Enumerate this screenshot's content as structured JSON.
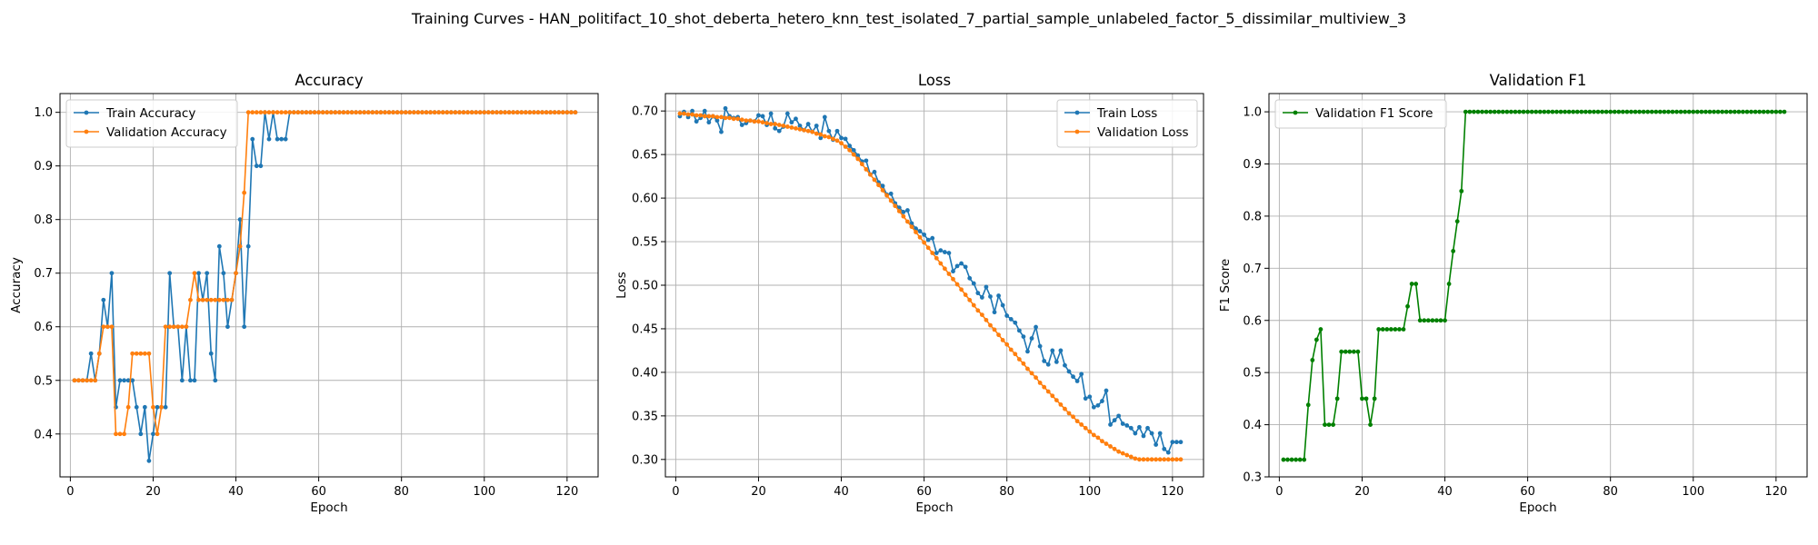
{
  "figure": {
    "suptitle": "Training Curves - HAN_politifact_10_shot_deberta_hetero_knn_test_isolated_7_partial_sample_unlabeled_factor_5_dissimilar_multiview_3"
  },
  "colors": {
    "blue": "#1f77b4",
    "orange": "#ff7f0e",
    "green": "#008000",
    "grid": "#b0b0b0"
  },
  "chart_data": [
    {
      "type": "line",
      "title": "Accuracy",
      "xlabel": "Epoch",
      "ylabel": "Accuracy",
      "xlim": [
        -2.5,
        127.5
      ],
      "ylim": [
        0.32,
        1.035
      ],
      "xticks": [
        0,
        20,
        40,
        60,
        80,
        100,
        120
      ],
      "xtick_labels": [
        "0",
        "20",
        "40",
        "60",
        "80",
        "100",
        "120"
      ],
      "yticks": [
        0.4,
        0.5,
        0.6,
        0.7,
        0.8,
        0.9,
        1.0
      ],
      "ytick_labels": [
        "0.4",
        "0.5",
        "0.6",
        "0.7",
        "0.8",
        "0.9",
        "1.0"
      ],
      "grid": true,
      "legend": "upper-left",
      "x_start": 1,
      "series": [
        {
          "name": "Train Accuracy",
          "color": "#1f77b4",
          "values": [
            0.5,
            0.5,
            0.5,
            0.5,
            0.55,
            0.5,
            0.55,
            0.65,
            0.6,
            0.7,
            0.45,
            0.5,
            0.5,
            0.5,
            0.5,
            0.45,
            0.4,
            0.45,
            0.35,
            0.4,
            0.45,
            0.45,
            0.45,
            0.7,
            0.6,
            0.6,
            0.5,
            0.6,
            0.5,
            0.5,
            0.7,
            0.65,
            0.7,
            0.55,
            0.5,
            0.75,
            0.7,
            0.6,
            0.65,
            0.7,
            0.8,
            0.6,
            0.75,
            0.95,
            0.9,
            0.9,
            1.0,
            0.95,
            1.0,
            0.95,
            0.95,
            0.95,
            1.0,
            1.0,
            1.0,
            1.0,
            1.0,
            1.0,
            1.0,
            1.0,
            1.0,
            1.0,
            1.0,
            1.0,
            1.0,
            1.0,
            1.0,
            1.0,
            1.0,
            1.0,
            1.0,
            1.0,
            1.0,
            1.0,
            1.0,
            1.0,
            1.0,
            1.0,
            1.0,
            1.0,
            1.0,
            1.0,
            1.0,
            1.0,
            1.0,
            1.0,
            1.0,
            1.0,
            1.0,
            1.0,
            1.0,
            1.0,
            1.0,
            1.0,
            1.0,
            1.0,
            1.0,
            1.0,
            1.0,
            1.0,
            1.0,
            1.0,
            1.0,
            1.0,
            1.0,
            1.0,
            1.0,
            1.0,
            1.0,
            1.0,
            1.0,
            1.0,
            1.0,
            1.0,
            1.0,
            1.0,
            1.0,
            1.0,
            1.0,
            1.0,
            1.0,
            1.0
          ]
        },
        {
          "name": "Validation Accuracy",
          "color": "#ff7f0e",
          "values": [
            0.5,
            0.5,
            0.5,
            0.5,
            0.5,
            0.5,
            0.55,
            0.6,
            0.6,
            0.6,
            0.4,
            0.4,
            0.4,
            0.45,
            0.55,
            0.55,
            0.55,
            0.55,
            0.55,
            0.45,
            0.4,
            0.45,
            0.6,
            0.6,
            0.6,
            0.6,
            0.6,
            0.6,
            0.65,
            0.7,
            0.65,
            0.65,
            0.65,
            0.65,
            0.65,
            0.65,
            0.65,
            0.65,
            0.65,
            0.7,
            0.75,
            0.85,
            1.0,
            1.0,
            1.0,
            1.0,
            1.0,
            1.0,
            1.0,
            1.0,
            1.0,
            1.0,
            1.0,
            1.0,
            1.0,
            1.0,
            1.0,
            1.0,
            1.0,
            1.0,
            1.0,
            1.0,
            1.0,
            1.0,
            1.0,
            1.0,
            1.0,
            1.0,
            1.0,
            1.0,
            1.0,
            1.0,
            1.0,
            1.0,
            1.0,
            1.0,
            1.0,
            1.0,
            1.0,
            1.0,
            1.0,
            1.0,
            1.0,
            1.0,
            1.0,
            1.0,
            1.0,
            1.0,
            1.0,
            1.0,
            1.0,
            1.0,
            1.0,
            1.0,
            1.0,
            1.0,
            1.0,
            1.0,
            1.0,
            1.0,
            1.0,
            1.0,
            1.0,
            1.0,
            1.0,
            1.0,
            1.0,
            1.0,
            1.0,
            1.0,
            1.0,
            1.0,
            1.0,
            1.0,
            1.0,
            1.0,
            1.0,
            1.0,
            1.0,
            1.0,
            1.0,
            1.0
          ]
        }
      ]
    },
    {
      "type": "line",
      "title": "Loss",
      "xlabel": "Epoch",
      "ylabel": "Loss",
      "xlim": [
        -2.5,
        127.5
      ],
      "ylim": [
        0.28,
        0.72
      ],
      "xticks": [
        0,
        20,
        40,
        60,
        80,
        100,
        120
      ],
      "xtick_labels": [
        "0",
        "20",
        "40",
        "60",
        "80",
        "100",
        "120"
      ],
      "yticks": [
        0.3,
        0.35,
        0.4,
        0.45,
        0.5,
        0.55,
        0.6,
        0.65,
        0.7
      ],
      "ytick_labels": [
        "0.30",
        "0.35",
        "0.40",
        "0.45",
        "0.50",
        "0.55",
        "0.60",
        "0.65",
        "0.70"
      ],
      "grid": true,
      "legend": "upper-right",
      "x_start": 1,
      "series": [
        {
          "name": "Train Loss",
          "color": "#1f77b4",
          "values": [
            0.694,
            0.699,
            0.693,
            0.7,
            0.688,
            0.692,
            0.7,
            0.687,
            0.694,
            0.689,
            0.676,
            0.703,
            0.694,
            0.692,
            0.693,
            0.684,
            0.686,
            0.689,
            0.688,
            0.695,
            0.694,
            0.684,
            0.697,
            0.68,
            0.677,
            0.682,
            0.697,
            0.687,
            0.691,
            0.683,
            0.678,
            0.685,
            0.676,
            0.683,
            0.669,
            0.693,
            0.677,
            0.667,
            0.677,
            0.669,
            0.668,
            0.66,
            0.655,
            0.649,
            0.642,
            0.643,
            0.627,
            0.63,
            0.618,
            0.614,
            0.604,
            0.605,
            0.594,
            0.589,
            0.584,
            0.586,
            0.571,
            0.565,
            0.562,
            0.558,
            0.552,
            0.554,
            0.537,
            0.54,
            0.538,
            0.537,
            0.516,
            0.522,
            0.525,
            0.521,
            0.508,
            0.502,
            0.491,
            0.486,
            0.498,
            0.487,
            0.469,
            0.488,
            0.477,
            0.465,
            0.461,
            0.457,
            0.448,
            0.441,
            0.424,
            0.439,
            0.452,
            0.43,
            0.413,
            0.409,
            0.425,
            0.412,
            0.425,
            0.408,
            0.401,
            0.395,
            0.39,
            0.398,
            0.37,
            0.372,
            0.36,
            0.362,
            0.367,
            0.379,
            0.34,
            0.345,
            0.35,
            0.341,
            0.339,
            0.336,
            0.33,
            0.337,
            0.327,
            0.336,
            0.33,
            0.317,
            0.33,
            0.312,
            0.308,
            0.32,
            0.32,
            0.32
          ]
        },
        {
          "name": "Validation Loss",
          "color": "#ff7f0e",
          "values": [
            0.697,
            0.697,
            0.696,
            0.696,
            0.695,
            0.695,
            0.694,
            0.694,
            0.694,
            0.693,
            0.693,
            0.692,
            0.692,
            0.691,
            0.691,
            0.69,
            0.689,
            0.689,
            0.688,
            0.688,
            0.687,
            0.686,
            0.685,
            0.685,
            0.684,
            0.683,
            0.682,
            0.681,
            0.68,
            0.679,
            0.678,
            0.677,
            0.676,
            0.674,
            0.673,
            0.671,
            0.67,
            0.668,
            0.666,
            0.663,
            0.659,
            0.655,
            0.65,
            0.645,
            0.639,
            0.633,
            0.627,
            0.621,
            0.615,
            0.609,
            0.603,
            0.597,
            0.591,
            0.585,
            0.579,
            0.573,
            0.567,
            0.561,
            0.555,
            0.549,
            0.543,
            0.537,
            0.531,
            0.525,
            0.519,
            0.513,
            0.507,
            0.501,
            0.495,
            0.489,
            0.483,
            0.477,
            0.471,
            0.466,
            0.46,
            0.454,
            0.449,
            0.443,
            0.437,
            0.432,
            0.426,
            0.421,
            0.415,
            0.41,
            0.404,
            0.399,
            0.394,
            0.388,
            0.383,
            0.378,
            0.373,
            0.368,
            0.363,
            0.358,
            0.353,
            0.349,
            0.344,
            0.34,
            0.336,
            0.332,
            0.328,
            0.325,
            0.321,
            0.318,
            0.315,
            0.312,
            0.309,
            0.307,
            0.305,
            0.303,
            0.301,
            0.3,
            0.3,
            0.3,
            0.3,
            0.3,
            0.3,
            0.3,
            0.3,
            0.3,
            0.3,
            0.3
          ]
        }
      ]
    },
    {
      "type": "line",
      "title": "Validation F1",
      "xlabel": "Epoch",
      "ylabel": "F1 Score",
      "xlim": [
        -2.5,
        127.5
      ],
      "ylim": [
        0.3,
        1.035
      ],
      "xticks": [
        0,
        20,
        40,
        60,
        80,
        100,
        120
      ],
      "xtick_labels": [
        "0",
        "20",
        "40",
        "60",
        "80",
        "100",
        "120"
      ],
      "yticks": [
        0.3,
        0.4,
        0.5,
        0.6,
        0.7,
        0.8,
        0.9,
        1.0
      ],
      "ytick_labels": [
        "0.3",
        "0.4",
        "0.5",
        "0.6",
        "0.7",
        "0.8",
        "0.9",
        "1.0"
      ],
      "grid": true,
      "legend": "upper-left",
      "x_start": 1,
      "series": [
        {
          "name": "Validation F1 Score",
          "color": "#008000",
          "values": [
            0.333,
            0.333,
            0.333,
            0.333,
            0.333,
            0.333,
            0.438,
            0.524,
            0.563,
            0.583,
            0.4,
            0.4,
            0.4,
            0.45,
            0.54,
            0.54,
            0.54,
            0.54,
            0.54,
            0.45,
            0.45,
            0.4,
            0.45,
            0.583,
            0.583,
            0.583,
            0.583,
            0.583,
            0.583,
            0.583,
            0.627,
            0.67,
            0.67,
            0.6,
            0.6,
            0.6,
            0.6,
            0.6,
            0.6,
            0.6,
            0.67,
            0.733,
            0.79,
            0.848,
            1.0,
            1.0,
            1.0,
            1.0,
            1.0,
            1.0,
            1.0,
            1.0,
            1.0,
            1.0,
            1.0,
            1.0,
            1.0,
            1.0,
            1.0,
            1.0,
            1.0,
            1.0,
            1.0,
            1.0,
            1.0,
            1.0,
            1.0,
            1.0,
            1.0,
            1.0,
            1.0,
            1.0,
            1.0,
            1.0,
            1.0,
            1.0,
            1.0,
            1.0,
            1.0,
            1.0,
            1.0,
            1.0,
            1.0,
            1.0,
            1.0,
            1.0,
            1.0,
            1.0,
            1.0,
            1.0,
            1.0,
            1.0,
            1.0,
            1.0,
            1.0,
            1.0,
            1.0,
            1.0,
            1.0,
            1.0,
            1.0,
            1.0,
            1.0,
            1.0,
            1.0,
            1.0,
            1.0,
            1.0,
            1.0,
            1.0,
            1.0,
            1.0,
            1.0,
            1.0,
            1.0,
            1.0,
            1.0,
            1.0,
            1.0,
            1.0,
            1.0,
            1.0
          ]
        }
      ]
    }
  ]
}
